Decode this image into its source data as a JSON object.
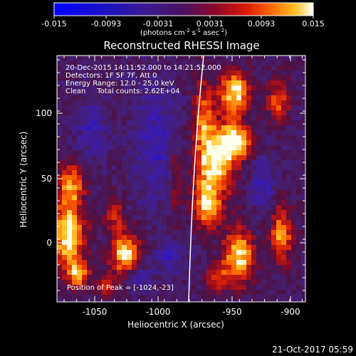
{
  "colorbar": {
    "ticks": [
      "-0.015",
      "-0.0093",
      "-0.0031",
      "0.0031",
      "0.0093",
      "0.015"
    ],
    "unit_prefix": "(photons cm",
    "unit_sup1": "-2",
    "unit_mid1": " s",
    "unit_sup2": "-1",
    "unit_mid2": " asec",
    "unit_sup3": "-2",
    "unit_suffix": ")"
  },
  "plot": {
    "title": "Reconstructed RHESSI Image",
    "annotations": {
      "line1": "20-Dec-2015 14:11:52.000 to 14:21:52.000",
      "line2": "Detectors: 1F 5F 7F, Att 0",
      "line3": "Energy Range: 12.0 - 25.0 keV",
      "line4": "Clean     Total counts: 2.62E+04",
      "peak": "Position of Peak = [-1024,-23]"
    },
    "xlabel": "Heliocentric X (arcsec)",
    "ylabel": "Heliocentric Y (arcsec)",
    "xticks": [
      "-1050",
      "-1000",
      "-950",
      "-900"
    ],
    "yticks": [
      "0",
      "50",
      "100"
    ]
  },
  "footer": {
    "timestamp": "21-Oct-2017 05:59"
  },
  "colors": {
    "background": "#000000",
    "axis": "#ffffff",
    "limb": "#ffffff"
  }
}
